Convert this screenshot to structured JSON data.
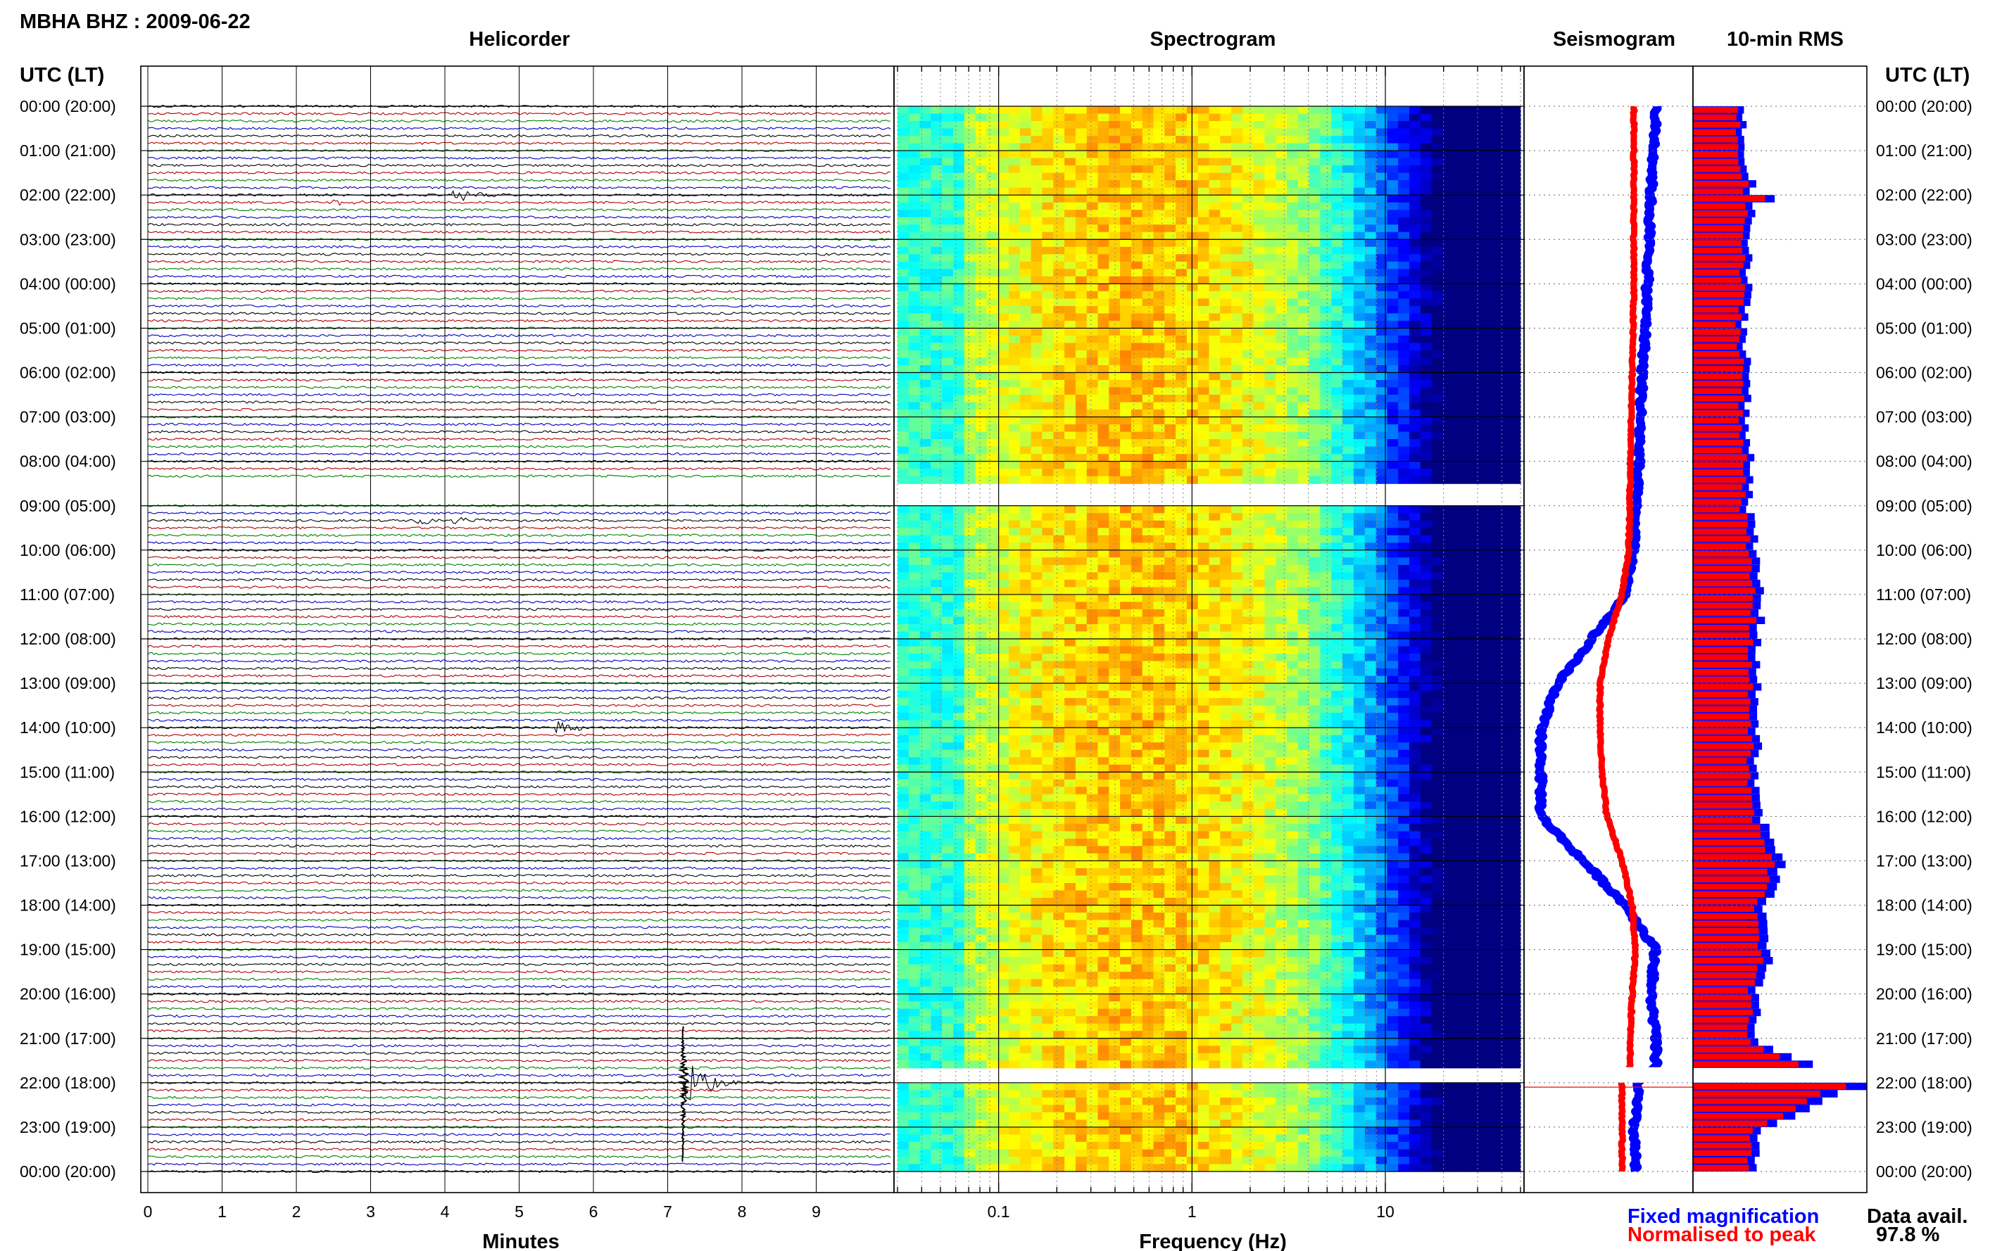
{
  "station_title": "MBHA BHZ : 2009-06-22",
  "panels": {
    "helicorder": "Helicorder",
    "spectrogram": "Spectrogram",
    "seismogram": "Seismogram",
    "rms": "10-min RMS"
  },
  "time_axis_label": "UTC (LT)",
  "time_labels": [
    "00:00 (20:00)",
    "01:00 (21:00)",
    "02:00 (22:00)",
    "03:00 (23:00)",
    "04:00 (00:00)",
    "05:00 (01:00)",
    "06:00 (02:00)",
    "07:00 (03:00)",
    "08:00 (04:00)",
    "09:00 (05:00)",
    "10:00 (06:00)",
    "11:00 (07:00)",
    "12:00 (08:00)",
    "13:00 (09:00)",
    "14:00 (10:00)",
    "15:00 (11:00)",
    "16:00 (12:00)",
    "17:00 (13:00)",
    "18:00 (14:00)",
    "19:00 (15:00)",
    "20:00 (16:00)",
    "21:00 (17:00)",
    "22:00 (18:00)",
    "23:00 (19:00)",
    "00:00 (20:00)"
  ],
  "minutes_axis": {
    "label": "Minutes",
    "ticks": [
      "0",
      "1",
      "2",
      "3",
      "4",
      "5",
      "6",
      "7",
      "8",
      "9"
    ]
  },
  "frequency_axis": {
    "label": "Frequency (Hz)",
    "ticks": [
      "0.1",
      "1",
      "10"
    ]
  },
  "legend": {
    "fixed": "Fixed magnification",
    "normalised": "Normalised to peak",
    "fixed_color": "#0000ff",
    "normalised_color": "#ff0000"
  },
  "data_avail": {
    "label": "Data avail.",
    "value": "97.8 %"
  },
  "colors": {
    "trace_cycle": [
      "#000000",
      "#b00000",
      "#008000",
      "#0000c0"
    ]
  },
  "chart_data": {
    "type": "multi-panel seismic summary",
    "helicorder": {
      "x_range_minutes": [
        0,
        10
      ],
      "y_range_hours": [
        0,
        24
      ],
      "traces_per_hour": 6,
      "events": [
        {
          "hour": 2.0,
          "minute": 4.1,
          "amplitude": 1.2
        },
        {
          "hour": 2.1,
          "minute": 2.5,
          "amplitude": 0.5
        },
        {
          "hour": 9.3,
          "minute": 3.6,
          "amplitude": 0.9
        },
        {
          "hour": 9.3,
          "minute": 4.1,
          "amplitude": 0.9
        },
        {
          "hour": 14.0,
          "minute": 5.5,
          "amplitude": 1.2
        },
        {
          "hour": 22.0,
          "minute": 7.2,
          "amplitude": 5.0
        }
      ],
      "gaps_hours": [
        [
          8.4,
          8.9
        ]
      ]
    },
    "spectrogram": {
      "x_scale": "log",
      "x_range_hz": [
        0.03,
        50
      ],
      "y_range_hours": [
        0,
        24
      ],
      "gaps_hours": [
        [
          8.4,
          9.0
        ],
        [
          21.65,
          22.0
        ]
      ]
    },
    "seismogram": {
      "y_range_hours": [
        0,
        24
      ],
      "fixed_hours": [
        0,
        1,
        2,
        3,
        4,
        5,
        6,
        7,
        8,
        9,
        10,
        11,
        12,
        13,
        14,
        15,
        16,
        17,
        18,
        19,
        20,
        21,
        21.6,
        22,
        23,
        24
      ],
      "fixed_values": [
        0.78,
        0.77,
        0.75,
        0.74,
        0.73,
        0.72,
        0.7,
        0.69,
        0.68,
        0.66,
        0.65,
        0.6,
        0.4,
        0.2,
        0.1,
        0.1,
        0.1,
        0.35,
        0.6,
        0.78,
        0.75,
        0.78,
        0.78,
        0.68,
        0.65,
        0.66
      ],
      "normalised_hours": [
        0,
        2,
        4,
        6,
        8,
        10,
        11,
        12,
        13,
        14,
        15,
        16,
        17,
        18,
        19,
        20,
        21,
        21.6,
        22,
        23,
        24
      ],
      "normalised_values": [
        0.65,
        0.65,
        0.65,
        0.64,
        0.63,
        0.62,
        0.58,
        0.5,
        0.45,
        0.45,
        0.46,
        0.49,
        0.58,
        0.64,
        0.66,
        0.64,
        0.63,
        0.63,
        0.58,
        0.58,
        0.58
      ]
    },
    "rms": {
      "interval_minutes": 10,
      "hourly_level_fraction": [
        0.28,
        0.3,
        0.36,
        0.32,
        0.32,
        0.3,
        0.33,
        0.3,
        0.35,
        0.33,
        0.36,
        0.4,
        0.38,
        0.37,
        0.38,
        0.36,
        0.4,
        0.52,
        0.42,
        0.45,
        0.36,
        0.38,
        0.95,
        0.38,
        0.37
      ],
      "spikes": [
        {
          "hour": 2.05,
          "fraction": 0.47
        },
        {
          "hour": 22.0,
          "fraction": 1.0
        }
      ]
    }
  }
}
